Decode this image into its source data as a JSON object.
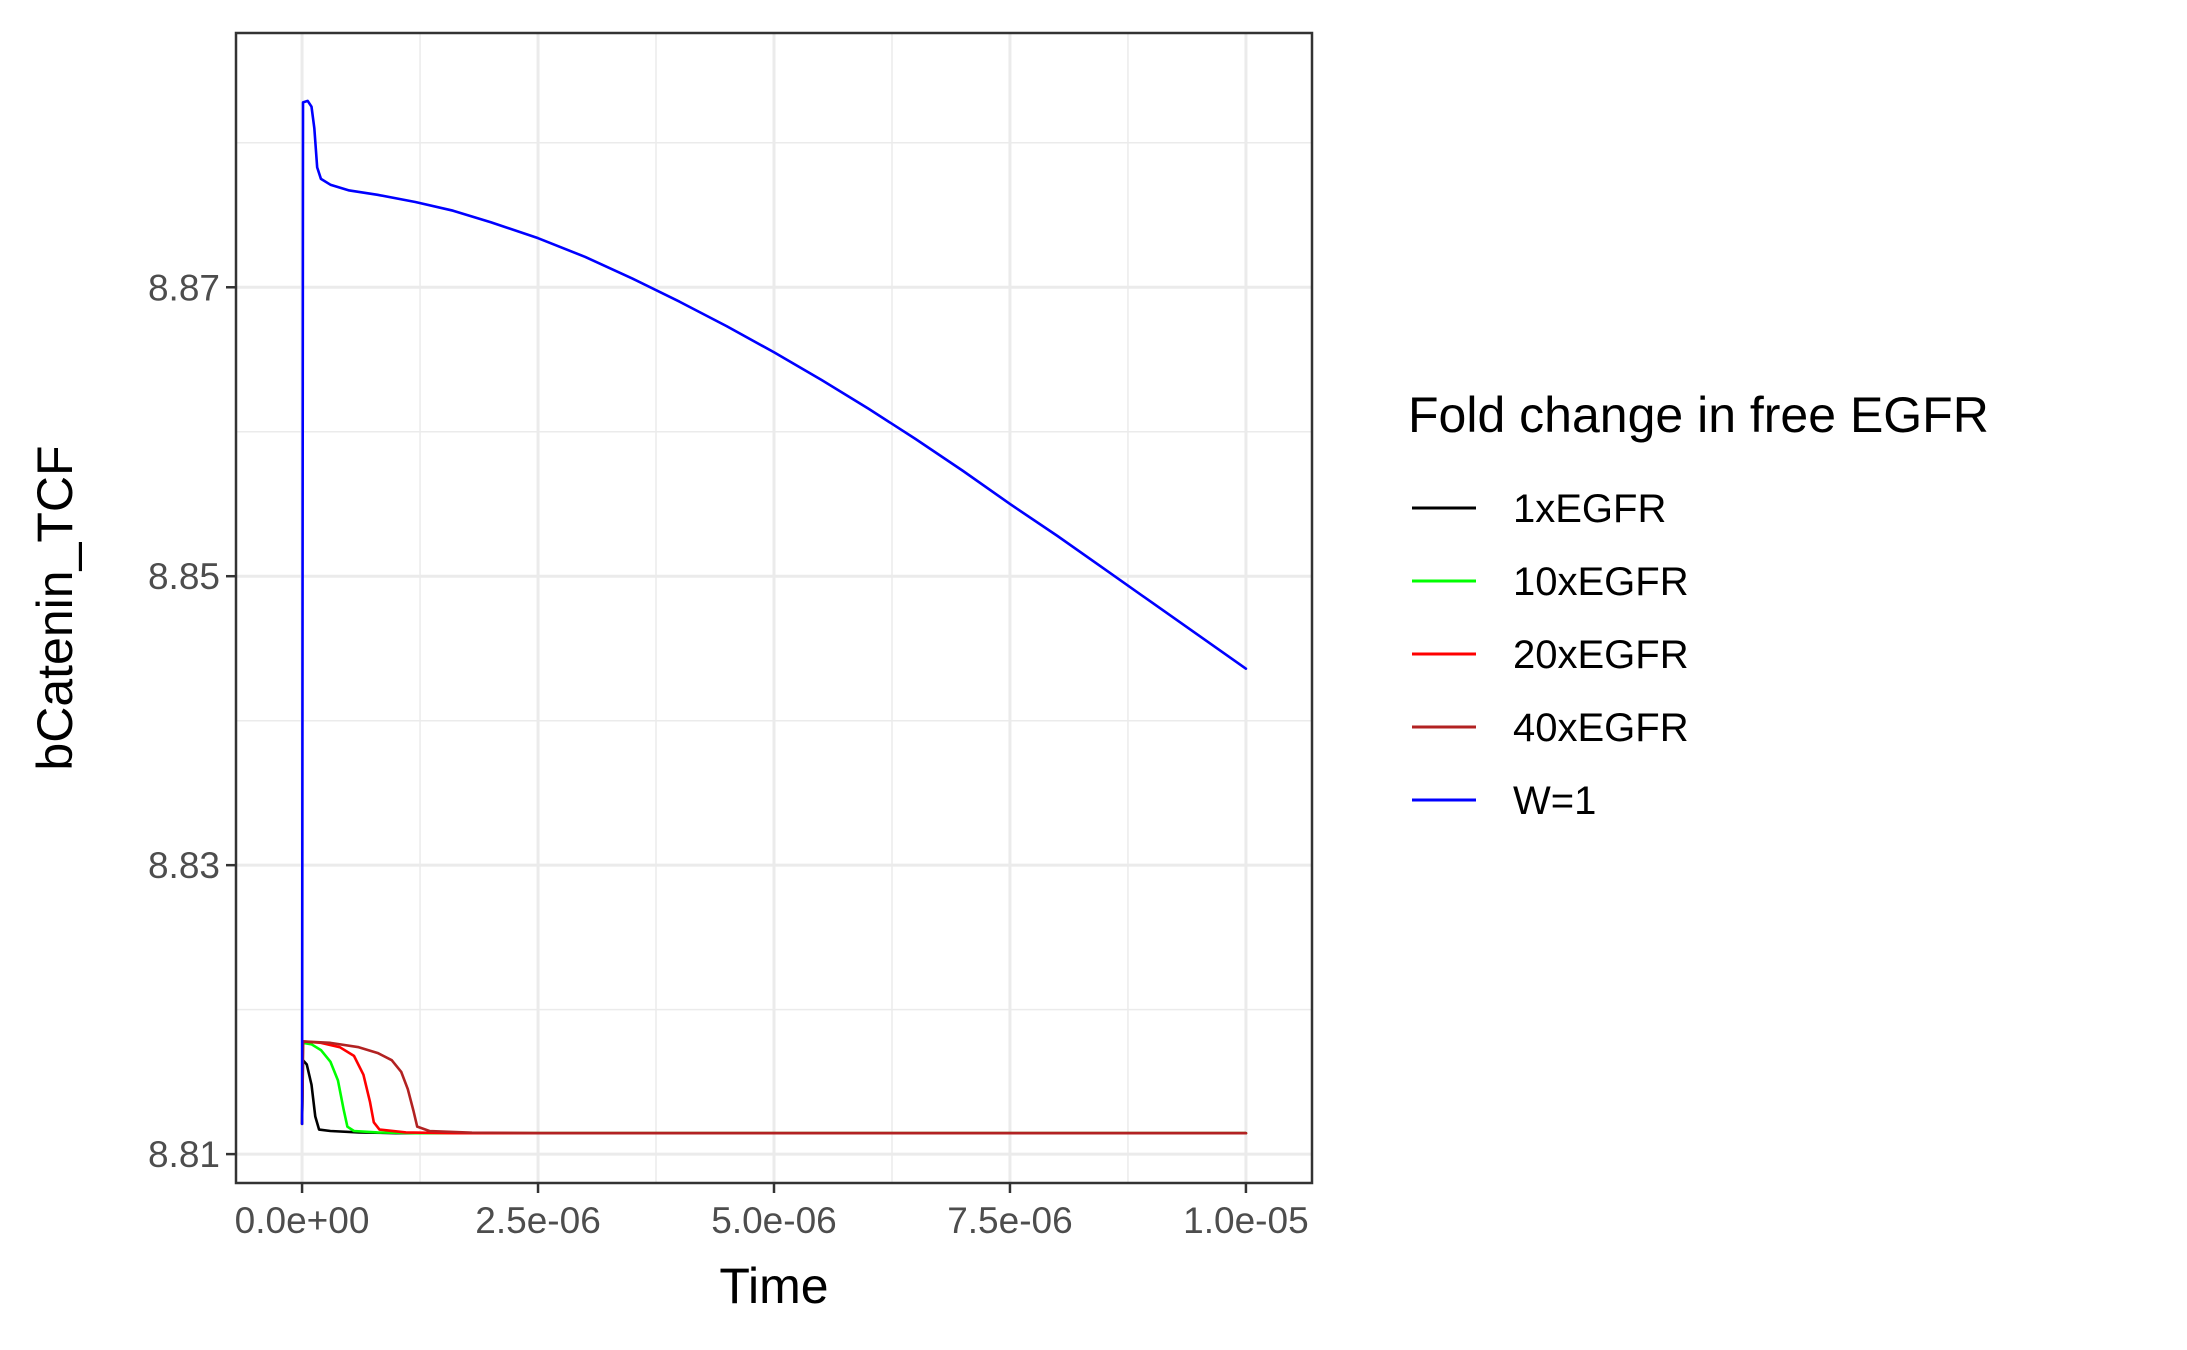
{
  "chart_data": {
    "type": "line",
    "title": "",
    "xlabel": "Time",
    "ylabel": "bCatenin_TCF",
    "xlim": [
      -7e-07,
      1.07e-05
    ],
    "ylim": [
      8.808,
      8.8876
    ],
    "x_ticks": [
      0,
      2.5e-06,
      5e-06,
      7.5e-06,
      1e-05
    ],
    "x_tick_labels": [
      "0.0e+00",
      "2.5e-06",
      "5.0e-06",
      "7.5e-06",
      "1.0e-05"
    ],
    "y_ticks": [
      8.81,
      8.83,
      8.85,
      8.87
    ],
    "y_tick_labels": [
      "8.81",
      "8.83",
      "8.85",
      "8.87"
    ],
    "grid": true,
    "legend": {
      "title": "Fold change in free EGFR",
      "position": "right"
    },
    "series": [
      {
        "name": "1xEGFR",
        "color": "#000000",
        "points": [
          [
            0,
            8.8121
          ],
          [
            1e-08,
            8.8165
          ],
          [
            5e-08,
            8.8162
          ],
          [
            1e-07,
            8.8148
          ],
          [
            1.4e-07,
            8.8126
          ],
          [
            1.8e-07,
            8.8117
          ],
          [
            3e-07,
            8.8116
          ],
          [
            6e-07,
            8.8115
          ],
          [
            1e-06,
            8.81145
          ],
          [
            1e-05,
            8.81145
          ]
        ]
      },
      {
        "name": "10xEGFR",
        "color": "#00ff00",
        "points": [
          [
            0,
            8.8121
          ],
          [
            1e-08,
            8.8177
          ],
          [
            1e-07,
            8.8176
          ],
          [
            2e-07,
            8.8172
          ],
          [
            3e-07,
            8.8164
          ],
          [
            3.8e-07,
            8.8151
          ],
          [
            4.4e-07,
            8.8131
          ],
          [
            4.8e-07,
            8.8119
          ],
          [
            5.5e-07,
            8.8116
          ],
          [
            8e-07,
            8.8115
          ],
          [
            1.2e-06,
            8.81145
          ],
          [
            1e-05,
            8.81145
          ]
        ]
      },
      {
        "name": "20xEGFR",
        "color": "#ff0000",
        "points": [
          [
            0,
            8.8121
          ],
          [
            1e-08,
            8.8178
          ],
          [
            2e-07,
            8.8177
          ],
          [
            4e-07,
            8.8174
          ],
          [
            5.5e-07,
            8.8168
          ],
          [
            6.5e-07,
            8.8155
          ],
          [
            7.2e-07,
            8.8136
          ],
          [
            7.6e-07,
            8.8122
          ],
          [
            8.2e-07,
            8.8117
          ],
          [
            1.1e-06,
            8.8115
          ],
          [
            1.6e-06,
            8.81145
          ],
          [
            1e-05,
            8.81145
          ]
        ]
      },
      {
        "name": "40xEGFR",
        "color": "#b22222",
        "points": [
          [
            0,
            8.8121
          ],
          [
            1e-08,
            8.8178
          ],
          [
            3e-07,
            8.8177
          ],
          [
            6e-07,
            8.8174
          ],
          [
            8e-07,
            8.817
          ],
          [
            9.5e-07,
            8.8165
          ],
          [
            1.05e-06,
            8.8157
          ],
          [
            1.12e-06,
            8.8145
          ],
          [
            1.18e-06,
            8.813
          ],
          [
            1.22e-06,
            8.8119
          ],
          [
            1.35e-06,
            8.8116
          ],
          [
            1.8e-06,
            8.81148
          ],
          [
            2.5e-06,
            8.81145
          ],
          [
            1e-05,
            8.81145
          ]
        ]
      },
      {
        "name": "W=1",
        "color": "#0000ff",
        "points": [
          [
            0,
            8.8121
          ],
          [
            1e-08,
            8.8828
          ],
          [
            6e-08,
            8.8829
          ],
          [
            1e-07,
            8.8825
          ],
          [
            1.3e-07,
            8.881
          ],
          [
            1.6e-07,
            8.8783
          ],
          [
            2e-07,
            8.8775
          ],
          [
            3e-07,
            8.8771
          ],
          [
            5e-07,
            8.8767
          ],
          [
            8e-07,
            8.8764
          ],
          [
            1.2e-06,
            8.8759
          ],
          [
            1.6e-06,
            8.8753
          ],
          [
            2e-06,
            8.8745
          ],
          [
            2.5e-06,
            8.8734
          ],
          [
            3e-06,
            8.8721
          ],
          [
            3.5e-06,
            8.8706
          ],
          [
            4e-06,
            8.869
          ],
          [
            4.5e-06,
            8.8673
          ],
          [
            5e-06,
            8.8655
          ],
          [
            5.5e-06,
            8.8636
          ],
          [
            6e-06,
            8.8616
          ],
          [
            6.5e-06,
            8.8595
          ],
          [
            7e-06,
            8.8573
          ],
          [
            7.5e-06,
            8.855
          ],
          [
            8e-06,
            8.8528
          ],
          [
            8.5e-06,
            8.8505
          ],
          [
            9e-06,
            8.8482
          ],
          [
            9.5e-06,
            8.8459
          ],
          [
            1e-05,
            8.8436
          ]
        ]
      }
    ]
  }
}
